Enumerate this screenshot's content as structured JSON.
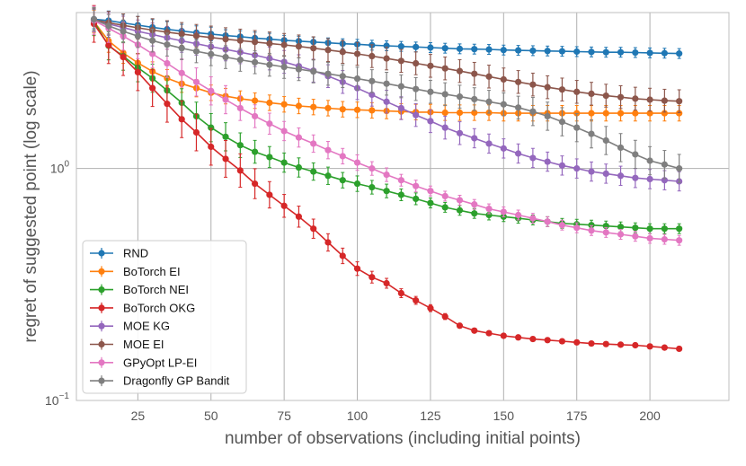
{
  "chart_data": {
    "type": "line",
    "title": "",
    "xlabel": "number of observations (including initial points)",
    "ylabel": "regret of suggested point (log scale)",
    "xlim": [
      4,
      227
    ],
    "ylim": [
      0.1,
      4.7
    ],
    "yscale": "log",
    "grid": true,
    "legend_position": "bottom-left",
    "x_ticks": [
      25,
      50,
      75,
      100,
      125,
      150,
      175,
      200
    ],
    "y_ticks": [
      {
        "value": 0.1,
        "base": "10",
        "exp": "−1"
      },
      {
        "value": 1,
        "base": "10",
        "exp": "0"
      }
    ],
    "x": [
      10,
      15,
      20,
      25,
      30,
      35,
      40,
      45,
      50,
      55,
      60,
      65,
      70,
      75,
      80,
      85,
      90,
      95,
      100,
      105,
      110,
      115,
      120,
      125,
      130,
      135,
      140,
      145,
      150,
      155,
      160,
      165,
      170,
      175,
      180,
      185,
      190,
      195,
      200,
      205,
      210
    ],
    "series": [
      {
        "name": "RND",
        "color": "#1f77b4",
        "values": [
          4.4,
          4.34,
          4.24,
          4.15,
          4.06,
          3.98,
          3.91,
          3.85,
          3.8,
          3.74,
          3.7,
          3.65,
          3.61,
          3.57,
          3.54,
          3.51,
          3.48,
          3.45,
          3.43,
          3.4,
          3.38,
          3.36,
          3.34,
          3.32,
          3.3,
          3.28,
          3.27,
          3.26,
          3.24,
          3.23,
          3.22,
          3.21,
          3.2,
          3.19,
          3.18,
          3.17,
          3.17,
          3.16,
          3.15,
          3.14,
          3.13
        ],
        "errors": [
          0.1,
          0.1,
          0.09,
          0.09,
          0.08,
          0.08,
          0.07,
          0.07,
          0.07,
          0.06,
          0.06,
          0.06,
          0.06,
          0.05,
          0.05,
          0.05,
          0.05,
          0.05,
          0.05,
          0.05,
          0.05,
          0.05,
          0.05,
          0.05,
          0.05,
          0.05,
          0.05,
          0.05,
          0.05,
          0.05,
          0.05,
          0.05,
          0.05,
          0.05,
          0.05,
          0.05,
          0.05,
          0.05,
          0.05,
          0.05,
          0.05
        ]
      },
      {
        "name": "BoTorch EI",
        "color": "#ff7f0e",
        "values": [
          4.3,
          3.55,
          3.15,
          2.85,
          2.62,
          2.45,
          2.32,
          2.22,
          2.12,
          2.05,
          2.0,
          1.96,
          1.92,
          1.89,
          1.86,
          1.84,
          1.82,
          1.8,
          1.79,
          1.78,
          1.77,
          1.76,
          1.75,
          1.75,
          1.74,
          1.74,
          1.74,
          1.74,
          1.73,
          1.73,
          1.73,
          1.73,
          1.73,
          1.73,
          1.73,
          1.73,
          1.73,
          1.73,
          1.73,
          1.73,
          1.73
        ],
        "errors": [
          0.12,
          0.12,
          0.11,
          0.1,
          0.1,
          0.09,
          0.09,
          0.09,
          0.08,
          0.08,
          0.08,
          0.08,
          0.08,
          0.08,
          0.08,
          0.08,
          0.08,
          0.08,
          0.08,
          0.08,
          0.08,
          0.08,
          0.08,
          0.08,
          0.08,
          0.08,
          0.08,
          0.08,
          0.08,
          0.08,
          0.08,
          0.08,
          0.08,
          0.08,
          0.08,
          0.08,
          0.08,
          0.08,
          0.08,
          0.08,
          0.08
        ]
      },
      {
        "name": "BoTorch NEI",
        "color": "#2ca02c",
        "values": [
          4.3,
          3.38,
          3.05,
          2.72,
          2.45,
          2.17,
          1.92,
          1.68,
          1.5,
          1.37,
          1.26,
          1.18,
          1.12,
          1.06,
          1.01,
          0.97,
          0.93,
          0.89,
          0.86,
          0.83,
          0.8,
          0.77,
          0.74,
          0.71,
          0.68,
          0.66,
          0.64,
          0.63,
          0.62,
          0.61,
          0.6,
          0.59,
          0.58,
          0.575,
          0.57,
          0.565,
          0.56,
          0.555,
          0.55,
          0.55,
          0.55
        ],
        "errors": [
          0.15,
          0.15,
          0.15,
          0.15,
          0.15,
          0.15,
          0.15,
          0.15,
          0.15,
          0.15,
          0.13,
          0.12,
          0.11,
          0.1,
          0.1,
          0.09,
          0.09,
          0.08,
          0.08,
          0.07,
          0.07,
          0.06,
          0.06,
          0.05,
          0.05,
          0.05,
          0.05,
          0.05,
          0.05,
          0.05,
          0.05,
          0.05,
          0.05,
          0.05,
          0.05,
          0.05,
          0.05,
          0.05,
          0.05,
          0.05,
          0.05
        ]
      },
      {
        "name": "BoTorch OKG",
        "color": "#d62728",
        "values": [
          4.2,
          3.4,
          3.02,
          2.6,
          2.22,
          1.9,
          1.63,
          1.43,
          1.24,
          1.1,
          0.98,
          0.86,
          0.77,
          0.69,
          0.62,
          0.55,
          0.48,
          0.42,
          0.37,
          0.34,
          0.32,
          0.29,
          0.27,
          0.25,
          0.23,
          0.21,
          0.2,
          0.195,
          0.19,
          0.187,
          0.184,
          0.182,
          0.18,
          0.178,
          0.176,
          0.175,
          0.174,
          0.173,
          0.171,
          0.169,
          0.167
        ],
        "errors": [
          0.2,
          0.2,
          0.2,
          0.2,
          0.2,
          0.2,
          0.2,
          0.2,
          0.2,
          0.2,
          0.18,
          0.16,
          0.14,
          0.12,
          0.11,
          0.1,
          0.09,
          0.08,
          0.07,
          0.06,
          0.05,
          0.045,
          0.04,
          0.035,
          0.03,
          0.025,
          0.022,
          0.022,
          0.022,
          0.022,
          0.022,
          0.022,
          0.022,
          0.022,
          0.022,
          0.022,
          0.022,
          0.022,
          0.022,
          0.022,
          0.022
        ]
      },
      {
        "name": "MOE KG",
        "color": "#9467bd",
        "values": [
          4.35,
          4.2,
          4.05,
          3.9,
          3.78,
          3.66,
          3.55,
          3.45,
          3.35,
          3.26,
          3.17,
          3.08,
          2.98,
          2.88,
          2.76,
          2.64,
          2.5,
          2.36,
          2.22,
          2.08,
          1.94,
          1.82,
          1.7,
          1.6,
          1.5,
          1.42,
          1.35,
          1.28,
          1.22,
          1.16,
          1.11,
          1.07,
          1.03,
          1.0,
          0.97,
          0.95,
          0.93,
          0.91,
          0.9,
          0.89,
          0.88
        ],
        "errors": [
          0.12,
          0.12,
          0.12,
          0.12,
          0.12,
          0.12,
          0.12,
          0.12,
          0.12,
          0.12,
          0.12,
          0.12,
          0.12,
          0.12,
          0.12,
          0.12,
          0.12,
          0.12,
          0.12,
          0.12,
          0.12,
          0.12,
          0.12,
          0.12,
          0.12,
          0.12,
          0.1,
          0.1,
          0.1,
          0.1,
          0.1,
          0.1,
          0.1,
          0.1,
          0.1,
          0.1,
          0.1,
          0.1,
          0.1,
          0.1,
          0.1
        ]
      },
      {
        "name": "MOE EI",
        "color": "#8c564b",
        "values": [
          4.38,
          4.25,
          4.14,
          4.04,
          3.95,
          3.87,
          3.8,
          3.73,
          3.67,
          3.61,
          3.56,
          3.51,
          3.46,
          3.41,
          3.36,
          3.3,
          3.24,
          3.18,
          3.12,
          3.05,
          2.98,
          2.91,
          2.84,
          2.77,
          2.7,
          2.63,
          2.56,
          2.49,
          2.42,
          2.36,
          2.3,
          2.24,
          2.19,
          2.14,
          2.1,
          2.06,
          2.03,
          2.0,
          1.98,
          1.96,
          1.95
        ],
        "errors": [
          0.12,
          0.12,
          0.12,
          0.12,
          0.12,
          0.12,
          0.12,
          0.12,
          0.12,
          0.12,
          0.12,
          0.12,
          0.12,
          0.12,
          0.12,
          0.12,
          0.12,
          0.12,
          0.12,
          0.12,
          0.12,
          0.12,
          0.12,
          0.12,
          0.12,
          0.12,
          0.12,
          0.12,
          0.12,
          0.12,
          0.12,
          0.12,
          0.12,
          0.12,
          0.12,
          0.12,
          0.12,
          0.12,
          0.12,
          0.12,
          0.12
        ]
      },
      {
        "name": "GPyOpt LP-EI",
        "color": "#e377c2",
        "values": [
          4.35,
          4.02,
          3.72,
          3.42,
          3.12,
          2.84,
          2.58,
          2.36,
          2.16,
          1.98,
          1.82,
          1.68,
          1.56,
          1.45,
          1.36,
          1.28,
          1.2,
          1.13,
          1.06,
          1.0,
          0.94,
          0.89,
          0.84,
          0.8,
          0.76,
          0.73,
          0.7,
          0.67,
          0.65,
          0.63,
          0.61,
          0.59,
          0.57,
          0.555,
          0.54,
          0.53,
          0.52,
          0.51,
          0.5,
          0.495,
          0.49
        ],
        "errors": [
          0.15,
          0.15,
          0.15,
          0.15,
          0.15,
          0.15,
          0.15,
          0.15,
          0.15,
          0.15,
          0.13,
          0.12,
          0.11,
          0.1,
          0.1,
          0.09,
          0.09,
          0.08,
          0.08,
          0.07,
          0.07,
          0.06,
          0.06,
          0.05,
          0.05,
          0.05,
          0.05,
          0.05,
          0.05,
          0.05,
          0.05,
          0.05,
          0.05,
          0.05,
          0.05,
          0.05,
          0.05,
          0.05,
          0.05,
          0.05,
          0.05
        ]
      },
      {
        "name": "Dragonfly GP Bandit",
        "color": "#7f7f7f",
        "values": [
          4.4,
          4.12,
          3.9,
          3.72,
          3.56,
          3.42,
          3.3,
          3.2,
          3.11,
          3.02,
          2.94,
          2.87,
          2.8,
          2.74,
          2.68,
          2.62,
          2.56,
          2.5,
          2.44,
          2.38,
          2.32,
          2.26,
          2.2,
          2.14,
          2.09,
          2.04,
          1.99,
          1.94,
          1.89,
          1.83,
          1.76,
          1.68,
          1.59,
          1.5,
          1.41,
          1.32,
          1.23,
          1.15,
          1.08,
          1.04,
          1.0
        ],
        "errors": [
          0.12,
          0.12,
          0.12,
          0.12,
          0.12,
          0.12,
          0.12,
          0.12,
          0.12,
          0.12,
          0.12,
          0.12,
          0.12,
          0.12,
          0.12,
          0.12,
          0.12,
          0.12,
          0.12,
          0.12,
          0.12,
          0.12,
          0.12,
          0.12,
          0.12,
          0.12,
          0.12,
          0.12,
          0.12,
          0.12,
          0.15,
          0.15,
          0.15,
          0.15,
          0.15,
          0.15,
          0.15,
          0.15,
          0.15,
          0.15,
          0.15
        ]
      }
    ]
  }
}
